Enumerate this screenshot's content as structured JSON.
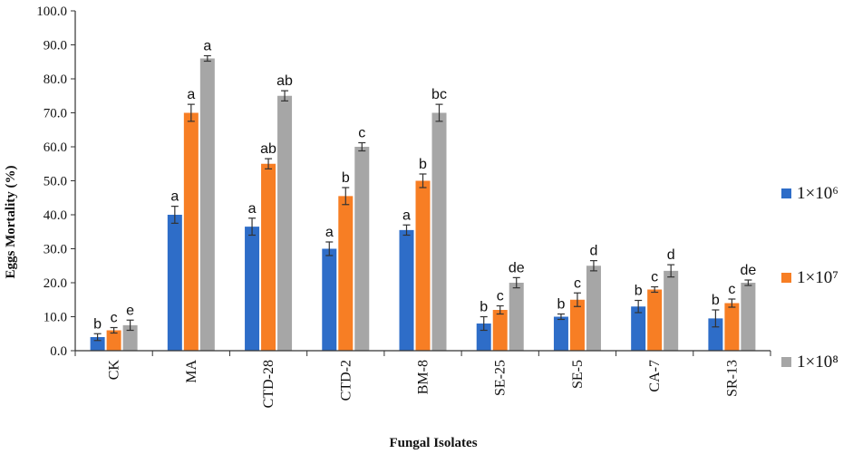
{
  "chart_data": {
    "type": "bar",
    "xlabel": "Fungal Isolates",
    "ylabel": "Eggs Mortality (%)",
    "ylim": [
      0,
      100
    ],
    "yticks": [
      "0.0",
      "10.0",
      "20.0",
      "30.0",
      "40.0",
      "50.0",
      "60.0",
      "70.0",
      "80.0",
      "90.0",
      "100.0"
    ],
    "grid": false,
    "legend_position": "right",
    "categories": [
      "CK",
      "MA",
      "CTD-28",
      "CTD-2",
      "BM-8",
      "SE-25",
      "SE-5",
      "CA-7",
      "SR-13"
    ],
    "series": [
      {
        "name": "1×10⁶",
        "color": "#2E6DC8",
        "values": [
          4.0,
          40.0,
          36.5,
          30.0,
          35.5,
          8.0,
          10.0,
          13.0,
          9.5
        ],
        "errors": [
          1.0,
          2.5,
          2.5,
          2.0,
          1.5,
          2.0,
          0.8,
          1.8,
          2.5
        ],
        "labels": [
          "b",
          "a",
          "a",
          "a",
          "a",
          "b",
          "b",
          "b",
          "b"
        ]
      },
      {
        "name": "1×10⁷",
        "color": "#F77E24",
        "values": [
          6.0,
          70.0,
          55.0,
          45.5,
          50.0,
          12.0,
          15.0,
          18.0,
          14.0
        ],
        "errors": [
          0.8,
          2.5,
          1.5,
          2.5,
          2.0,
          1.2,
          2.0,
          0.8,
          1.2
        ],
        "labels": [
          "c",
          "a",
          "ab",
          "b",
          "b",
          "c",
          "c",
          "c",
          "c"
        ]
      },
      {
        "name": "1×10⁸",
        "color": "#A6A6A6",
        "values": [
          7.5,
          86.0,
          75.0,
          60.0,
          70.0,
          20.0,
          25.0,
          23.5,
          20.0
        ],
        "errors": [
          1.5,
          0.8,
          1.5,
          1.2,
          2.5,
          1.5,
          1.5,
          1.8,
          0.8
        ],
        "labels": [
          "e",
          "a",
          "ab",
          "c",
          "bc",
          "de",
          "d",
          "d",
          "de"
        ]
      }
    ]
  }
}
